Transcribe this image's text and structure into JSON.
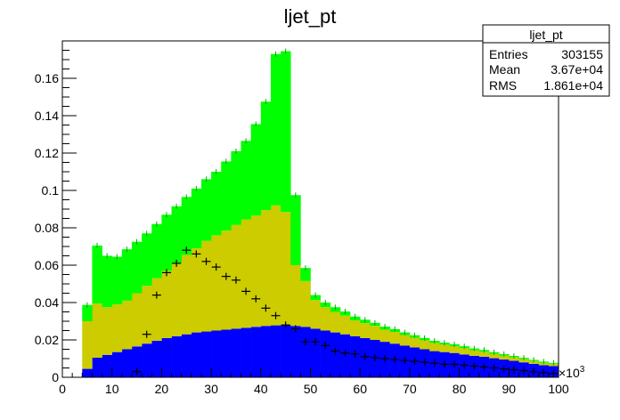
{
  "chart_data": {
    "type": "bar",
    "title": "ljet_pt",
    "xlabel": "",
    "ylabel": "",
    "x_multiplier_label": "×10",
    "x_multiplier_exp": "3",
    "xlim": [
      0,
      100
    ],
    "ylim": [
      0,
      0.18
    ],
    "x_ticks": [
      0,
      10,
      20,
      30,
      40,
      50,
      60,
      70,
      80,
      90,
      100
    ],
    "y_ticks": [
      0,
      0.02,
      0.04,
      0.06,
      0.08,
      0.1,
      0.12,
      0.14,
      0.16
    ],
    "bin_edges_start": 4,
    "bin_width": 2,
    "stacked": true,
    "series": [
      {
        "color": "#0000ff",
        "values": [
          0.0045,
          0.0105,
          0.012,
          0.0135,
          0.015,
          0.0165,
          0.018,
          0.0195,
          0.021,
          0.022,
          0.023,
          0.024,
          0.0245,
          0.025,
          0.0255,
          0.026,
          0.0265,
          0.027,
          0.0275,
          0.0278,
          0.028,
          0.0275,
          0.027,
          0.026,
          0.025,
          0.024,
          0.023,
          0.022,
          0.021,
          0.02,
          0.019,
          0.018,
          0.017,
          0.016,
          0.015,
          0.014,
          0.0135,
          0.013,
          0.0122,
          0.0115,
          0.011,
          0.0102,
          0.0095,
          0.0088,
          0.008,
          0.0072,
          0.0065,
          0.006
        ]
      },
      {
        "color": "#cccc00",
        "values": [
          0.0255,
          0.029,
          0.0255,
          0.0255,
          0.026,
          0.0285,
          0.031,
          0.0335,
          0.036,
          0.039,
          0.0425,
          0.045,
          0.0485,
          0.051,
          0.053,
          0.0555,
          0.058,
          0.0595,
          0.062,
          0.0642,
          0.0605,
          0.0325,
          0.0245,
          0.0153,
          0.0125,
          0.011,
          0.01,
          0.0085,
          0.008,
          0.0075,
          0.0065,
          0.0063,
          0.0056,
          0.0052,
          0.0048,
          0.0044,
          0.004,
          0.0037,
          0.0034,
          0.003,
          0.0027,
          0.0024,
          0.0021,
          0.0019,
          0.0017,
          0.0015,
          0.0013,
          0.0012
        ]
      },
      {
        "color": "#00ff00",
        "values": [
          0.0087,
          0.031,
          0.0275,
          0.0255,
          0.0275,
          0.0275,
          0.028,
          0.029,
          0.03,
          0.0305,
          0.031,
          0.032,
          0.033,
          0.034,
          0.037,
          0.0395,
          0.042,
          0.049,
          0.058,
          0.081,
          0.086,
          0.0375,
          0.007,
          0.0027,
          0.0025,
          0.0025,
          0.0022,
          0.002,
          0.0018,
          0.0016,
          0.0016,
          0.0015,
          0.0014,
          0.0013,
          0.0012,
          0.0011,
          0.001,
          0.001,
          0.001,
          0.0009,
          0.0009,
          0.0008,
          0.0008,
          0.0007,
          0.0007,
          0.0006,
          0.0006,
          0.0005
        ]
      }
    ],
    "markers": {
      "color": "#000000",
      "points": [
        [
          15,
          0.003
        ],
        [
          17,
          0.023
        ],
        [
          19,
          0.044
        ],
        [
          21,
          0.056
        ],
        [
          23,
          0.061
        ],
        [
          25,
          0.068
        ],
        [
          27,
          0.066
        ],
        [
          29,
          0.062
        ],
        [
          31,
          0.059
        ],
        [
          33,
          0.054
        ],
        [
          35,
          0.052
        ],
        [
          37,
          0.046
        ],
        [
          39,
          0.042
        ],
        [
          41,
          0.037
        ],
        [
          43,
          0.033
        ],
        [
          45,
          0.028
        ],
        [
          47,
          0.026
        ],
        [
          49,
          0.019
        ],
        [
          51,
          0.019
        ],
        [
          53,
          0.017
        ],
        [
          55,
          0.014
        ],
        [
          57,
          0.013
        ],
        [
          59,
          0.0125
        ],
        [
          61,
          0.011
        ],
        [
          63,
          0.0105
        ],
        [
          65,
          0.01
        ],
        [
          67,
          0.0095
        ],
        [
          69,
          0.009
        ],
        [
          71,
          0.0085
        ],
        [
          73,
          0.008
        ],
        [
          75,
          0.0075
        ],
        [
          77,
          0.007
        ],
        [
          79,
          0.007
        ],
        [
          81,
          0.0065
        ],
        [
          83,
          0.006
        ],
        [
          85,
          0.0055
        ],
        [
          87,
          0.005
        ],
        [
          89,
          0.0045
        ],
        [
          91,
          0.004
        ],
        [
          93,
          0.0035
        ],
        [
          95,
          0.003
        ],
        [
          97,
          0.0025
        ],
        [
          99,
          0.002
        ]
      ]
    },
    "stats_box": {
      "title": "ljet_pt",
      "rows": [
        {
          "label": "Entries",
          "value": "303155"
        },
        {
          "label": "Mean",
          "value": "3.67e+04"
        },
        {
          "label": "RMS",
          "value": "1.861e+04"
        }
      ]
    }
  }
}
